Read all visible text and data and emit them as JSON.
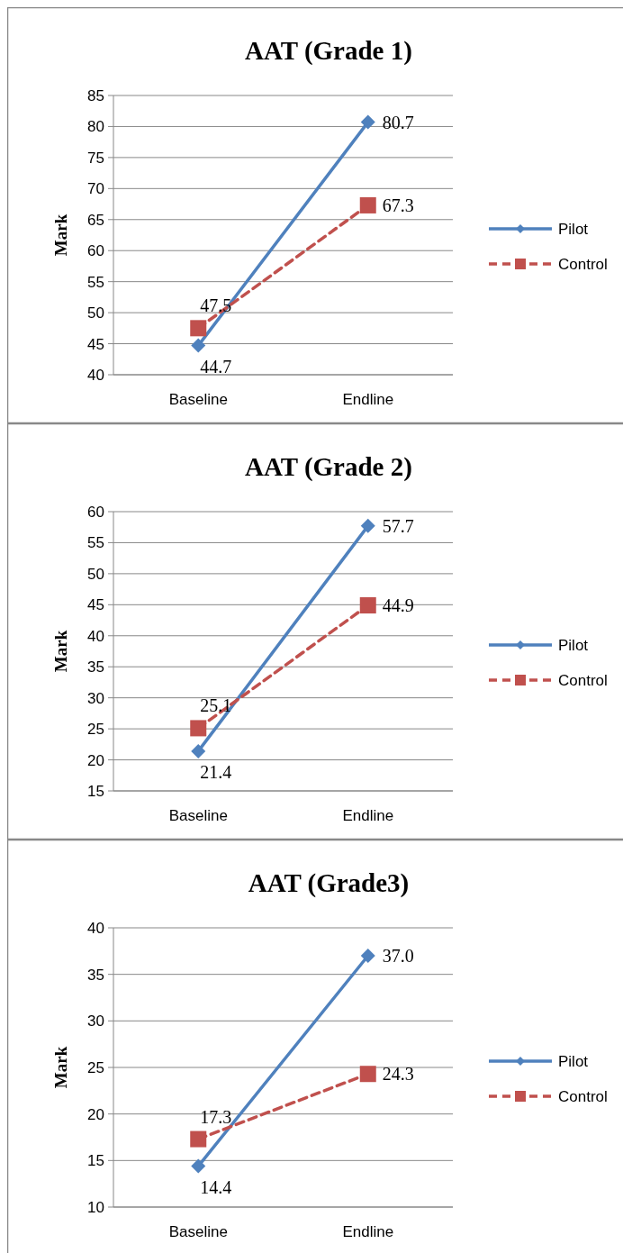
{
  "chart_data": [
    {
      "type": "line",
      "title": "AAT (Grade 1)",
      "ylabel": "Mark",
      "categories": [
        "Baseline",
        "Endline"
      ],
      "ylim": [
        40,
        85
      ],
      "yticks": [
        40,
        45,
        50,
        55,
        60,
        65,
        70,
        75,
        80,
        85
      ],
      "grid": "y",
      "legend": "right",
      "series": [
        {
          "name": "Pilot",
          "color": "#4f81bd",
          "marker": "diamond",
          "line_style": "solid",
          "values": [
            44.7,
            80.7
          ],
          "value_labels": [
            "44.7",
            "80.7"
          ]
        },
        {
          "name": "Control",
          "color": "#c0504d",
          "marker": "square",
          "line_style": "dashed",
          "values": [
            47.5,
            67.3
          ],
          "value_labels": [
            "47.5",
            "67.3"
          ]
        }
      ]
    },
    {
      "type": "line",
      "title": "AAT (Grade 2)",
      "ylabel": "Mark",
      "categories": [
        "Baseline",
        "Endline"
      ],
      "ylim": [
        15,
        60
      ],
      "yticks": [
        15,
        20,
        25,
        30,
        35,
        40,
        45,
        50,
        55,
        60
      ],
      "grid": "y",
      "legend": "right",
      "series": [
        {
          "name": "Pilot",
          "color": "#4f81bd",
          "marker": "diamond",
          "line_style": "solid",
          "values": [
            21.4,
            57.7
          ],
          "value_labels": [
            "21.4",
            "57.7"
          ]
        },
        {
          "name": "Control",
          "color": "#c0504d",
          "marker": "square",
          "line_style": "dashed",
          "values": [
            25.1,
            44.9
          ],
          "value_labels": [
            "25.1",
            "44.9"
          ]
        }
      ]
    },
    {
      "type": "line",
      "title": "AAT (Grade3)",
      "ylabel": "Mark",
      "categories": [
        "Baseline",
        "Endline"
      ],
      "ylim": [
        10,
        40
      ],
      "yticks": [
        10,
        15,
        20,
        25,
        30,
        35,
        40
      ],
      "grid": "y",
      "legend": "right",
      "series": [
        {
          "name": "Pilot",
          "color": "#4f81bd",
          "marker": "diamond",
          "line_style": "solid",
          "values": [
            14.4,
            37.0
          ],
          "value_labels": [
            "14.4",
            "37.0"
          ]
        },
        {
          "name": "Control",
          "color": "#c0504d",
          "marker": "square",
          "line_style": "dashed",
          "values": [
            17.3,
            24.3
          ],
          "value_labels": [
            "17.3",
            "24.3"
          ]
        }
      ]
    }
  ]
}
